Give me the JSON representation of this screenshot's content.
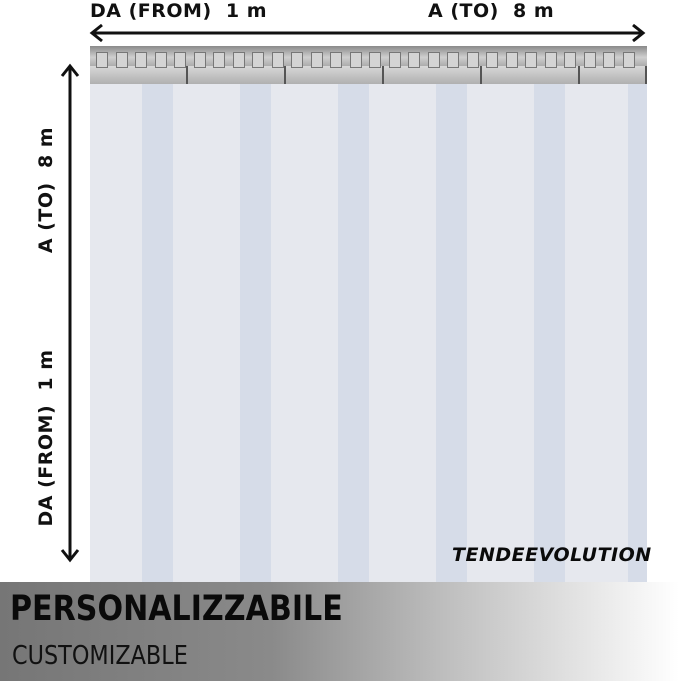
{
  "dimensions": {
    "width_from": "DA (FROM)  1 m",
    "width_to": "A (TO)  8 m",
    "height_to": "A (TO)  8 m",
    "height_from": "DA (FROM)  1 m"
  },
  "brand": "TENDEEVOLUTION",
  "banner": {
    "title": "PERSONALIZZABILE",
    "subtitle": "CUSTOMIZABLE"
  },
  "colors": {
    "curtain": "#e6e8ee",
    "overlap_strip": "#d6dce8",
    "banner_dark": "#767676"
  }
}
